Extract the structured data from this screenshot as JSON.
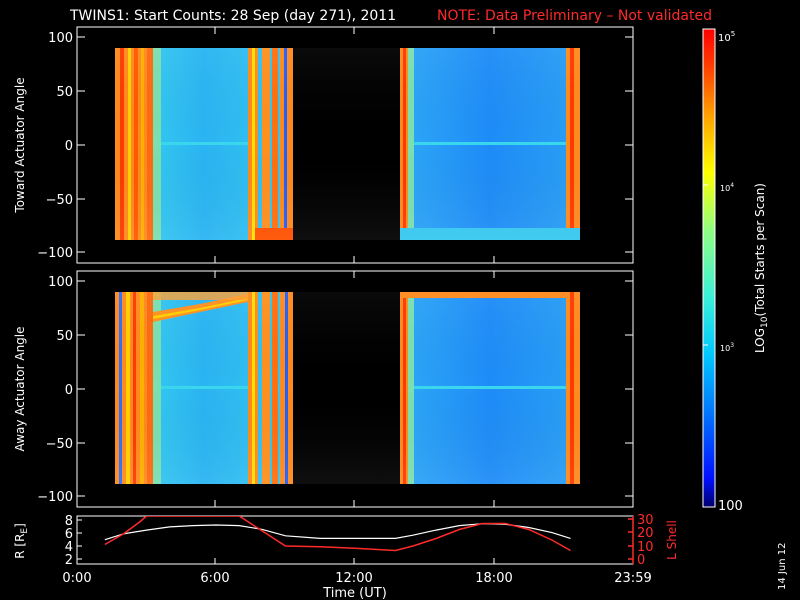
{
  "title": {
    "main": "TWINS1: Start Counts: 28 Sep (day 271), 2011",
    "note": "NOTE: Data Preliminary – Not validated"
  },
  "stamp": "14 Jun 12",
  "colors": {
    "background": "#000000",
    "text": "#ffffff",
    "note": "#ff2a2a",
    "lshell": "#ff2a2a",
    "radius": "#ffffff"
  },
  "chart_data": [
    {
      "type": "heatmap",
      "ylabel": "Toward Actuator Angle",
      "xlim": [
        0,
        24
      ],
      "ylim": [
        -110,
        110
      ],
      "yticks": [
        "100",
        "50",
        "0",
        "−50",
        "−100"
      ],
      "ytick_values": [
        100,
        50,
        0,
        -50,
        -100
      ],
      "data_windows_hours": [
        [
          1.2,
          9.0
        ],
        [
          13.75,
          21.3
        ]
      ]
    },
    {
      "type": "heatmap",
      "ylabel": "Away Actuator Angle",
      "xlim": [
        0,
        24
      ],
      "ylim": [
        -110,
        110
      ],
      "yticks": [
        "100",
        "50",
        "0",
        "−50",
        "−100"
      ],
      "ytick_values": [
        100,
        50,
        0,
        -50,
        -100
      ],
      "data_windows_hours": [
        [
          1.2,
          9.0
        ],
        [
          13.75,
          21.3
        ]
      ]
    },
    {
      "type": "line",
      "ylabel_left": "R [R",
      "ylabel_left_sub": "E",
      "ylabel_left_end": "]",
      "ylabel_right": "L Shell",
      "yticks_left": [
        "8",
        "6",
        "4",
        "2"
      ],
      "yticks_left_values": [
        8,
        6,
        4,
        2
      ],
      "ylim_left": [
        1,
        8.5
      ],
      "yticks_right": [
        "30",
        "20",
        "10",
        "0"
      ],
      "yticks_right_values": [
        30,
        20,
        10,
        0
      ],
      "ylim_right": [
        0,
        32
      ],
      "xlabel": "Time (UT)",
      "xtick_labels": [
        "0:00",
        "6:00",
        "12:00",
        "18:00",
        "23:59"
      ],
      "xtick_values": [
        0,
        6,
        12,
        18,
        23.98
      ],
      "series": [
        {
          "axis": "left",
          "x": [
            1.2,
            2.0,
            3.0,
            4.0,
            5.0,
            6.0,
            7.0,
            8.0,
            9.0,
            10.5,
            12.0,
            13.75,
            14.5,
            15.5,
            16.5,
            17.5,
            18.5,
            19.5,
            20.5,
            21.3
          ],
          "y": [
            4.8,
            5.7,
            6.3,
            6.8,
            7.0,
            7.1,
            7.0,
            6.4,
            5.4,
            5.0,
            5.0,
            5.0,
            5.5,
            6.3,
            7.0,
            7.3,
            7.2,
            6.7,
            5.9,
            5.0
          ]
        },
        {
          "axis": "right",
          "x": [
            1.2,
            2.0,
            2.7,
            3.0,
            7.0,
            8.0,
            9.0,
            10.5,
            12.0,
            13.75,
            14.5,
            15.5,
            16.5,
            17.5,
            18.5,
            19.5,
            20.5,
            21.3
          ],
          "y": [
            13,
            20,
            28,
            32,
            32,
            22,
            12,
            11.5,
            10.5,
            9,
            12,
            17,
            23,
            27,
            27,
            23,
            16,
            9
          ]
        }
      ]
    }
  ],
  "colorbar": {
    "label_prefix": "LOG",
    "label_sub": "10",
    "label_suffix": "(Total Starts per Scan)",
    "ticks": [
      {
        "label": "10",
        "exp": "5",
        "value": 100000
      },
      {
        "label": "10",
        "exp": "4",
        "value": 10000
      },
      {
        "label": "10",
        "exp": "3",
        "value": 1000
      },
      {
        "label": "100",
        "exp": "",
        "value": 100
      }
    ],
    "range": [
      100,
      100000
    ],
    "scale": "log"
  }
}
